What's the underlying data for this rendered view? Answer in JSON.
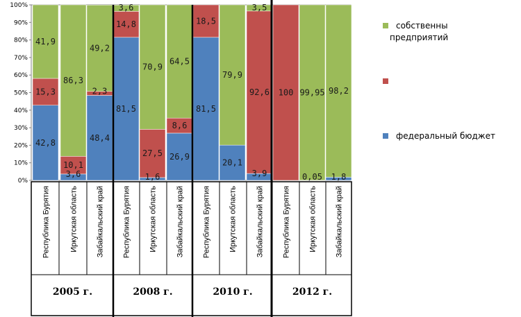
{
  "chart_data": {
    "type": "bar",
    "stacked_percent": true,
    "y_ticks": [
      "0%",
      "10%",
      "20%",
      "30%",
      "40%",
      "50%",
      "60%",
      "70%",
      "80%",
      "90%",
      "100%"
    ],
    "ylim": [
      0,
      100
    ],
    "groups": [
      {
        "year": "2005 г.",
        "categories": [
          "Республика Бурятия",
          "Иркутская область",
          "Забайкальский край"
        ]
      },
      {
        "year": "2008 г.",
        "categories": [
          "Республика Бурятия",
          "Иркутская область",
          "Забайкальский край"
        ]
      },
      {
        "year": "2010 г.",
        "categories": [
          "Республика Бурятия",
          "Иркутская область",
          "Забайкальский край"
        ]
      },
      {
        "year": "2012 г.",
        "categories": [
          "Республика Бурятия",
          "Иркутская область",
          "Забайкальский край"
        ]
      }
    ],
    "series": [
      {
        "name": "федеральный бюджет",
        "color": "#4f81bd",
        "values": [
          42.8,
          3.6,
          48.4,
          81.5,
          1.6,
          26.9,
          81.5,
          20.1,
          3.9,
          0,
          0.05,
          1.8
        ],
        "labels": [
          "42,8",
          "3,6",
          "48,4",
          "81,5",
          "1,6",
          "26,9",
          "81,5",
          "20,1",
          "3,9",
          "",
          "0,05",
          "1,8"
        ]
      },
      {
        "name": "",
        "color": "#c0504d",
        "values": [
          15.3,
          10.1,
          2.3,
          14.8,
          27.5,
          8.6,
          18.5,
          0,
          92.6,
          100,
          0,
          0
        ],
        "labels": [
          "15,3",
          "10,1",
          "2,3",
          "14,8",
          "27,5",
          "8,6",
          "18,5",
          "",
          "92,6",
          "100",
          "",
          ""
        ]
      },
      {
        "name": "собственны предприятий",
        "color": "#9bbb59",
        "values": [
          41.9,
          86.3,
          49.2,
          3.6,
          70.9,
          64.5,
          0,
          79.9,
          3.5,
          0,
          99.95,
          98.2
        ],
        "labels": [
          "41,9",
          "86,3",
          "49,2",
          "3,6",
          "70,9",
          "64,5",
          "",
          "79,9",
          "3,5",
          "",
          "99,95",
          "98,2"
        ]
      }
    ]
  }
}
